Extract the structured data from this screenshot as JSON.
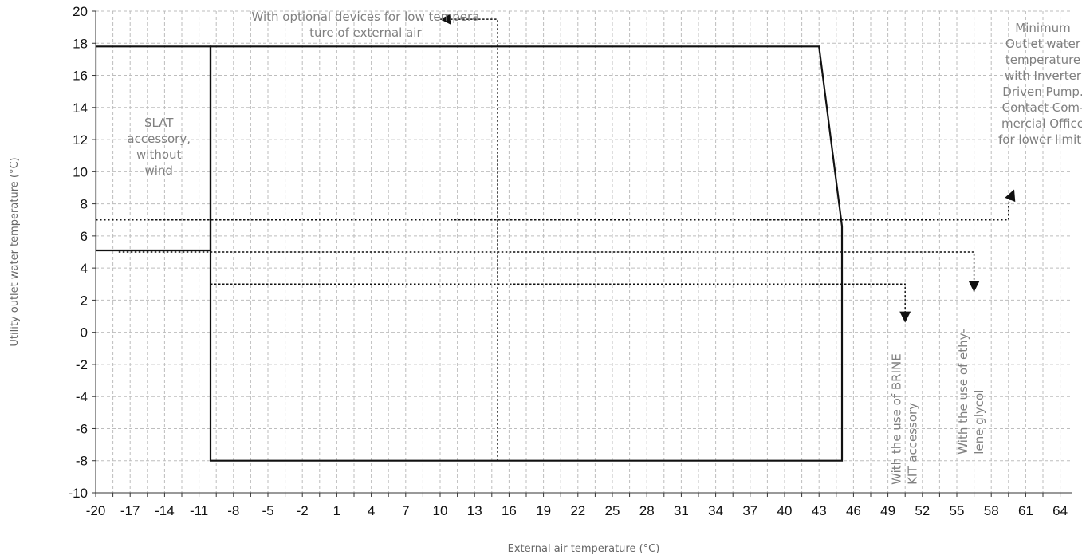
{
  "chart_data": {
    "type": "line",
    "xlabel": "External air temperature (°C)",
    "ylabel": "Utility outlet water temperature (°C)",
    "x_ticks": [
      "-20",
      "-17",
      "-14",
      "-11",
      "-8",
      "-5",
      "-2",
      "1",
      "4",
      "7",
      "10",
      "13",
      "16",
      "19",
      "22",
      "25",
      "28",
      "31",
      "34",
      "37",
      "40",
      "43",
      "46",
      "49",
      "52",
      "55",
      "58",
      "61",
      "64"
    ],
    "y_ticks": [
      20,
      18,
      16,
      14,
      12,
      10,
      8,
      6,
      4,
      2,
      0,
      -2,
      -4,
      -6,
      -8,
      -10
    ],
    "xlim": [
      -20,
      65
    ],
    "ylim": [
      -10,
      20
    ],
    "grid": true,
    "series": [
      {
        "style": "solid",
        "x": [
          -10,
          -10,
          43,
          45,
          45,
          -10
        ],
        "y": [
          -8,
          17.8,
          17.8,
          6.6,
          -8,
          -8
        ]
      },
      {
        "style": "solid",
        "x": [
          -20,
          -10,
          -10,
          -20,
          -20
        ],
        "y": [
          5.1,
          5.1,
          17.8,
          17.8,
          5.1
        ]
      },
      {
        "style": "dotted",
        "arrow": "end",
        "x": [
          15,
          15,
          10
        ],
        "y": [
          -8,
          19.5,
          19.5
        ]
      },
      {
        "style": "dotted",
        "arrow": "end",
        "x": [
          -20,
          59.5,
          59.5,
          60
        ],
        "y": [
          7,
          7,
          8,
          8.9
        ]
      },
      {
        "style": "dotted",
        "arrow": "end",
        "x": [
          -18,
          56.5,
          56.5
        ],
        "y": [
          5,
          5,
          2.5
        ]
      },
      {
        "style": "dotted",
        "arrow": "end",
        "x": [
          -10,
          50.5,
          50.5
        ],
        "y": [
          3,
          3,
          0.6
        ]
      }
    ],
    "annotations": [
      {
        "lines": [
          "SLAT",
          "accessory,",
          "without",
          "wind"
        ],
        "x": -14.5,
        "y": 12.8,
        "rotate": 0,
        "anchor": "middle"
      },
      {
        "lines": [
          "With optional devices for low tempera",
          "ture of external air"
        ],
        "x": 3.5,
        "y": 19.4,
        "rotate": 0,
        "anchor": "middle"
      },
      {
        "lines": [
          "Minimum",
          "Outlet water",
          "temperature",
          "with Inverter",
          "Driven Pump.",
          "Contact Com-",
          "mercial Office",
          "for lower limits"
        ],
        "x": 62.5,
        "y": 18.7,
        "rotate": 0,
        "anchor": "middle"
      },
      {
        "lines": [
          "With the use of BRINE",
          "KIT accessory"
        ],
        "x": 50.1,
        "y": -9.5,
        "rotate": -90,
        "anchor": "start"
      },
      {
        "lines": [
          "With the use of ethy-",
          "lene glycol"
        ],
        "x": 55.9,
        "y": -7.6,
        "rotate": -90,
        "anchor": "start"
      }
    ]
  }
}
